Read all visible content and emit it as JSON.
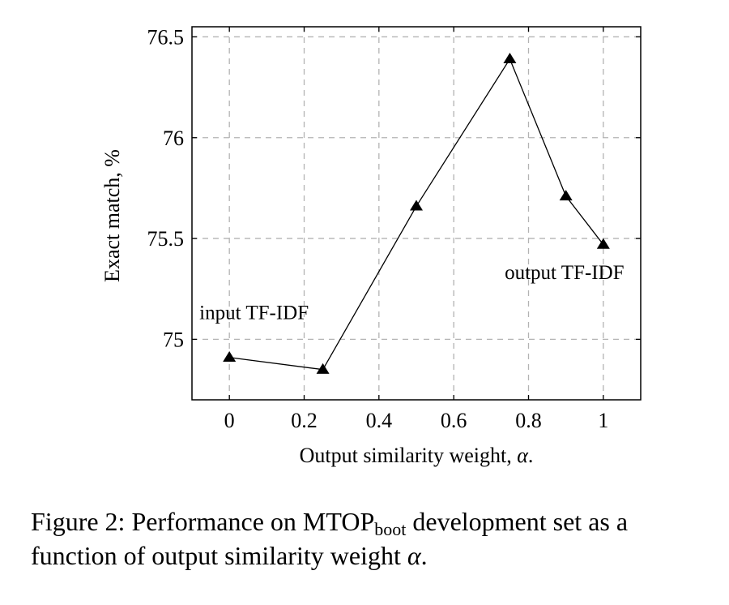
{
  "chart_data": {
    "type": "line",
    "xlabel_prefix": "Output similarity weight, ",
    "xlabel_symbol": "α",
    "xlabel_suffix": ".",
    "ylabel": "Exact match, %",
    "xlim": [
      -0.1,
      1.1
    ],
    "ylim": [
      74.7,
      76.55
    ],
    "xticks": [
      0,
      0.2,
      0.4,
      0.6,
      0.8,
      1
    ],
    "xtick_labels": [
      "0",
      "0.2",
      "0.4",
      "0.6",
      "0.8",
      "1"
    ],
    "yticks": [
      75,
      75.5,
      76,
      76.5
    ],
    "ytick_labels": [
      "75",
      "75.5",
      "76",
      "76.5"
    ],
    "grid": true,
    "marker": "triangle",
    "series": [
      {
        "x": [
          0,
          0.25,
          0.5,
          0.75,
          0.9,
          1
        ],
        "y": [
          74.91,
          74.85,
          75.66,
          76.39,
          75.71,
          75.47
        ]
      }
    ],
    "annotations": [
      {
        "text": "input TF-IDF",
        "x": 0.0,
        "y": 75.1
      },
      {
        "text": "output TF-IDF",
        "x": 0.98,
        "y": 75.3
      }
    ]
  },
  "caption": {
    "prefix": "Figure 2: Performance on MTOP",
    "subscript": "boot",
    "middle": " development set as a function of output similarity weight ",
    "symbol": "α",
    "end": "."
  }
}
